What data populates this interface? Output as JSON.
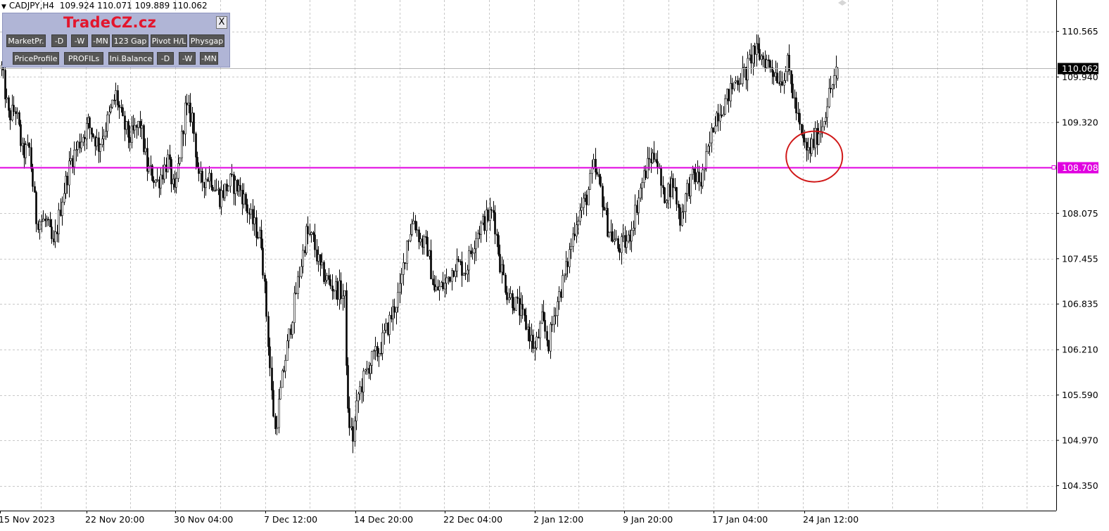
{
  "header": {
    "symbol": "CADJPY,H4",
    "ohlc": "109.924 110.071 109.889 110.062"
  },
  "panel": {
    "brand": "TradeCZ.cz",
    "close_label": "X",
    "row1": [
      "MarketPr.",
      "-D",
      "-W",
      "-MN",
      "123 Gap",
      "Pivot H/L",
      "Physgap"
    ],
    "row2": [
      "PriceProfile",
      "PROFILs",
      "Ini.Balance",
      "-D",
      "-W",
      "-MN"
    ]
  },
  "colors": {
    "candle": "#000000",
    "grid": "#c8c8c8",
    "level_line": "#e000e0",
    "circle": "#d01818",
    "current_price_line": "#b4b4b4"
  },
  "chart_data": {
    "type": "candlestick",
    "timeframe": "H4",
    "ylim": [
      104.05,
      110.9
    ],
    "y_ticks": [
      "110.565",
      "109.940",
      "109.320",
      "108.075",
      "107.455",
      "106.835",
      "106.210",
      "105.590",
      "104.970",
      "104.350"
    ],
    "x_ticks": [
      "15 Nov 2023",
      "22 Nov 20:00",
      "30 Nov 04:00",
      "7 Dec 12:00",
      "14 Dec 20:00",
      "22 Dec 04:00",
      "2 Jan 12:00",
      "9 Jan 20:00",
      "17 Jan 04:00",
      "24 Jan 12:00"
    ],
    "current_price": "110.062",
    "horizontal_level": "108.708",
    "highlight_circle": {
      "around": "24 Jan 12:00",
      "price": 108.9
    },
    "close_path": [
      {
        "t": 0,
        "c": 110.06
      },
      {
        "t": 4,
        "c": 109.4
      },
      {
        "t": 8,
        "c": 109.5
      },
      {
        "t": 12,
        "c": 108.9
      },
      {
        "t": 16,
        "c": 108.95
      },
      {
        "t": 20,
        "c": 108.0
      },
      {
        "t": 26,
        "c": 107.95
      },
      {
        "t": 30,
        "c": 107.6
      },
      {
        "t": 35,
        "c": 108.3
      },
      {
        "t": 40,
        "c": 108.8
      },
      {
        "t": 44,
        "c": 109.0
      },
      {
        "t": 50,
        "c": 109.3
      },
      {
        "t": 56,
        "c": 109.0
      },
      {
        "t": 62,
        "c": 109.4
      },
      {
        "t": 66,
        "c": 109.7
      },
      {
        "t": 70,
        "c": 109.3
      },
      {
        "t": 74,
        "c": 109.1
      },
      {
        "t": 80,
        "c": 109.3
      },
      {
        "t": 84,
        "c": 108.7
      },
      {
        "t": 90,
        "c": 108.5
      },
      {
        "t": 96,
        "c": 108.8
      },
      {
        "t": 100,
        "c": 108.3
      },
      {
        "t": 104,
        "c": 109.1
      },
      {
        "t": 106,
        "c": 109.5
      },
      {
        "t": 110,
        "c": 109.4
      },
      {
        "t": 114,
        "c": 108.5
      },
      {
        "t": 120,
        "c": 108.6
      },
      {
        "t": 126,
        "c": 108.3
      },
      {
        "t": 132,
        "c": 108.5
      },
      {
        "t": 138,
        "c": 108.4
      },
      {
        "t": 144,
        "c": 108.0
      },
      {
        "t": 150,
        "c": 107.7
      },
      {
        "t": 153,
        "c": 106.7
      },
      {
        "t": 156,
        "c": 105.6
      },
      {
        "t": 158,
        "c": 105.1
      },
      {
        "t": 162,
        "c": 105.8
      },
      {
        "t": 166,
        "c": 106.4
      },
      {
        "t": 170,
        "c": 107.0
      },
      {
        "t": 176,
        "c": 107.8
      },
      {
        "t": 180,
        "c": 107.7
      },
      {
        "t": 184,
        "c": 107.3
      },
      {
        "t": 190,
        "c": 107.1
      },
      {
        "t": 196,
        "c": 107.0
      },
      {
        "t": 198,
        "c": 106.9
      },
      {
        "t": 200,
        "c": 105.3
      },
      {
        "t": 203,
        "c": 105.0
      },
      {
        "t": 206,
        "c": 105.6
      },
      {
        "t": 212,
        "c": 106.0
      },
      {
        "t": 218,
        "c": 106.2
      },
      {
        "t": 224,
        "c": 106.6
      },
      {
        "t": 230,
        "c": 107.0
      },
      {
        "t": 234,
        "c": 107.7
      },
      {
        "t": 238,
        "c": 108.0
      },
      {
        "t": 242,
        "c": 107.7
      },
      {
        "t": 246,
        "c": 107.6
      },
      {
        "t": 250,
        "c": 107.0
      },
      {
        "t": 256,
        "c": 107.1
      },
      {
        "t": 262,
        "c": 107.4
      },
      {
        "t": 268,
        "c": 107.3
      },
      {
        "t": 274,
        "c": 107.8
      },
      {
        "t": 280,
        "c": 108.0
      },
      {
        "t": 284,
        "c": 108.1
      },
      {
        "t": 288,
        "c": 107.4
      },
      {
        "t": 292,
        "c": 107.0
      },
      {
        "t": 298,
        "c": 106.8
      },
      {
        "t": 304,
        "c": 106.5
      },
      {
        "t": 308,
        "c": 106.2
      },
      {
        "t": 312,
        "c": 106.6
      },
      {
        "t": 316,
        "c": 106.3
      },
      {
        "t": 320,
        "c": 106.8
      },
      {
        "t": 326,
        "c": 107.3
      },
      {
        "t": 332,
        "c": 108.0
      },
      {
        "t": 338,
        "c": 108.3
      },
      {
        "t": 342,
        "c": 108.7
      },
      {
        "t": 346,
        "c": 108.4
      },
      {
        "t": 350,
        "c": 107.9
      },
      {
        "t": 356,
        "c": 107.6
      },
      {
        "t": 362,
        "c": 107.7
      },
      {
        "t": 366,
        "c": 108.1
      },
      {
        "t": 370,
        "c": 108.5
      },
      {
        "t": 374,
        "c": 108.8
      },
      {
        "t": 378,
        "c": 108.9
      },
      {
        "t": 382,
        "c": 108.3
      },
      {
        "t": 388,
        "c": 108.5
      },
      {
        "t": 392,
        "c": 108.0
      },
      {
        "t": 396,
        "c": 108.4
      },
      {
        "t": 400,
        "c": 108.6
      },
      {
        "t": 404,
        "c": 108.5
      },
      {
        "t": 408,
        "c": 108.9
      },
      {
        "t": 412,
        "c": 109.4
      },
      {
        "t": 418,
        "c": 109.6
      },
      {
        "t": 424,
        "c": 109.9
      },
      {
        "t": 430,
        "c": 110.0
      },
      {
        "t": 434,
        "c": 110.3
      },
      {
        "t": 440,
        "c": 110.2
      },
      {
        "t": 444,
        "c": 110.1
      },
      {
        "t": 450,
        "c": 109.9
      },
      {
        "t": 454,
        "c": 110.1
      },
      {
        "t": 458,
        "c": 109.6
      },
      {
        "t": 462,
        "c": 109.1
      },
      {
        "t": 466,
        "c": 108.9
      },
      {
        "t": 470,
        "c": 109.1
      },
      {
        "t": 474,
        "c": 109.3
      },
      {
        "t": 478,
        "c": 109.7
      },
      {
        "t": 483,
        "c": 110.06
      }
    ]
  }
}
